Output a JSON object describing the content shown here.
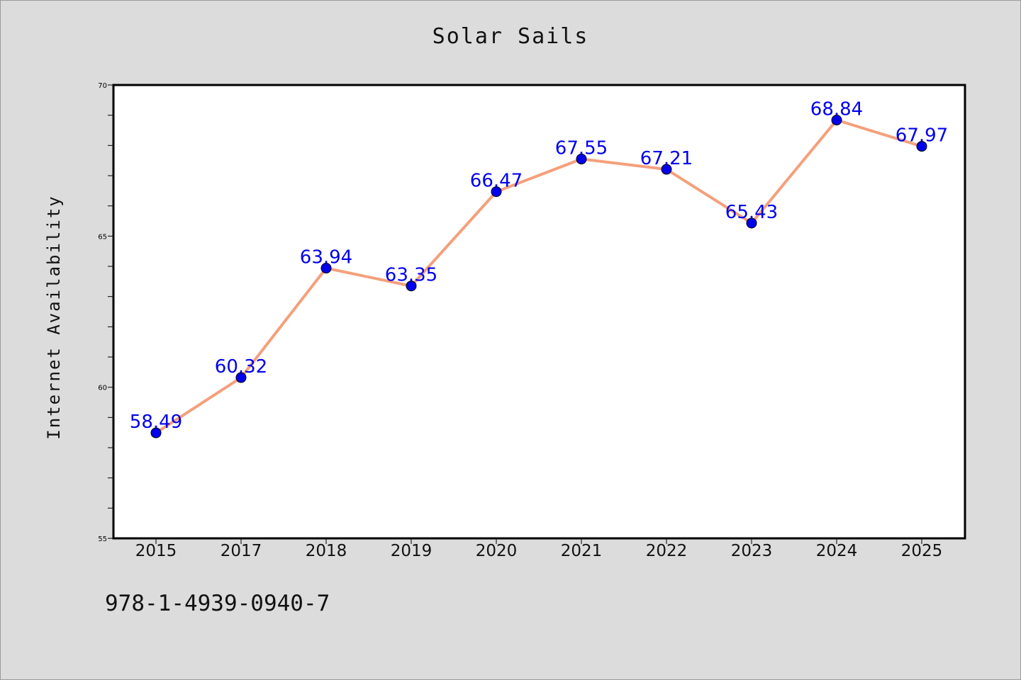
{
  "chart_data": {
    "type": "line",
    "title": "Solar Sails",
    "xlabel": "",
    "ylabel": "Internet Availability",
    "categories": [
      "2015",
      "2017",
      "2018",
      "2019",
      "2020",
      "2021",
      "2022",
      "2023",
      "2024",
      "2025"
    ],
    "values": [
      58.49,
      60.32,
      63.94,
      63.35,
      66.47,
      67.55,
      67.21,
      65.43,
      68.84,
      67.97
    ],
    "data_labels": [
      "58.49",
      "60.32",
      "63.94",
      "63.35",
      "66.47",
      "67.55",
      "67.21",
      "65.43",
      "68.84",
      "67.97"
    ],
    "ylim": [
      55,
      70
    ],
    "y_ticks": [
      55,
      60,
      65,
      70
    ],
    "y_tick_labels": [
      "55",
      "60",
      "65",
      "70"
    ],
    "y_minor_tick_step": 1,
    "grid": false,
    "legend": "none",
    "colors": {
      "line": "#f4a07c",
      "marker": "#0000ee",
      "data_label": "#0000ee",
      "plot_background": "#ffffff",
      "page_background": "#dcdcdc"
    }
  },
  "footer": {
    "code": "978-1-4939-0940-7"
  }
}
